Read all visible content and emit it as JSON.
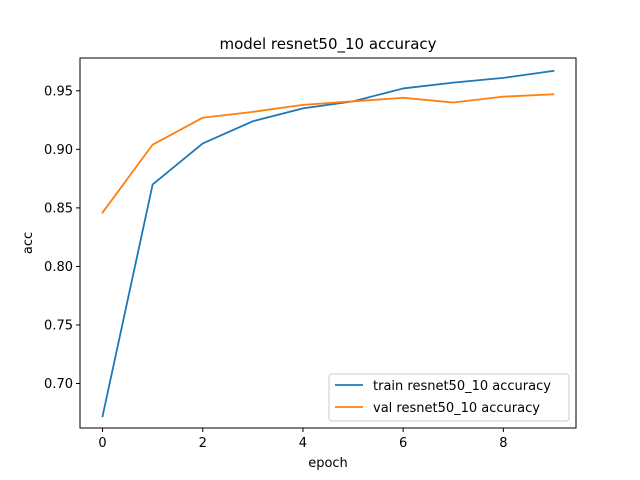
{
  "chart_data": {
    "type": "line",
    "title": "model resnet50_10 accuracy",
    "xlabel": "epoch",
    "ylabel": "acc",
    "x": [
      0,
      1,
      2,
      3,
      4,
      5,
      6,
      7,
      8,
      9
    ],
    "xlim": [
      -0.45,
      9.45
    ],
    "ylim": [
      0.662,
      0.978
    ],
    "xticks": [
      0,
      2,
      4,
      6,
      8
    ],
    "yticks": [
      0.7,
      0.75,
      0.8,
      0.85,
      0.9,
      0.95
    ],
    "grid": false,
    "legend_position": "lower-right",
    "series": [
      {
        "name": "train resnet50_10 accuracy",
        "color": "#1f77b4",
        "values": [
          0.672,
          0.87,
          0.905,
          0.924,
          0.935,
          0.941,
          0.952,
          0.957,
          0.961,
          0.967
        ]
      },
      {
        "name": "val resnet50_10 accuracy",
        "color": "#ff7f0e",
        "values": [
          0.846,
          0.904,
          0.927,
          0.932,
          0.938,
          0.941,
          0.944,
          0.94,
          0.945,
          0.947
        ]
      }
    ]
  }
}
